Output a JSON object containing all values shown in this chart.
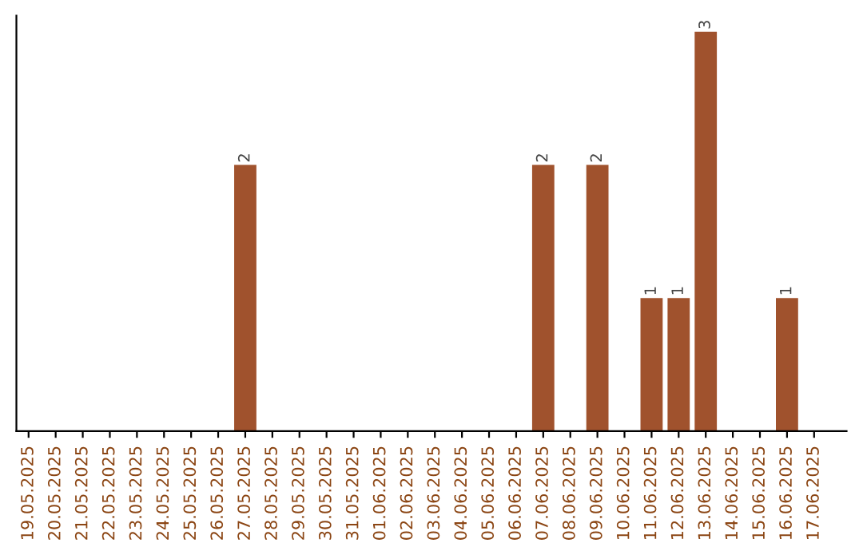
{
  "chart_data": {
    "type": "bar",
    "categories": [
      "19.05.2025",
      "20.05.2025",
      "21.05.2025",
      "22.05.2025",
      "23.05.2025",
      "24.05.2025",
      "25.05.2025",
      "26.05.2025",
      "27.05.2025",
      "28.05.2025",
      "29.05.2025",
      "30.05.2025",
      "31.05.2025",
      "01.06.2025",
      "02.06.2025",
      "03.06.2025",
      "04.06.2025",
      "05.06.2025",
      "06.06.2025",
      "07.06.2025",
      "08.06.2025",
      "09.06.2025",
      "10.06.2025",
      "11.06.2025",
      "12.06.2025",
      "13.06.2025",
      "14.06.2025",
      "15.06.2025",
      "16.06.2025",
      "17.06.2025"
    ],
    "values": [
      0,
      0,
      0,
      0,
      0,
      0,
      0,
      0,
      2,
      0,
      0,
      0,
      0,
      0,
      0,
      0,
      0,
      0,
      0,
      2,
      0,
      2,
      0,
      1,
      1,
      3,
      0,
      0,
      1,
      0
    ],
    "value_labels": [
      null,
      null,
      null,
      null,
      null,
      null,
      null,
      null,
      "2",
      null,
      null,
      null,
      null,
      null,
      null,
      null,
      null,
      null,
      null,
      "2",
      null,
      "2",
      null,
      "1",
      "1",
      "3",
      null,
      null,
      "1",
      null
    ],
    "color": "#a0522d",
    "ylim": [
      0,
      3.12
    ],
    "tick_labels": "x",
    "grid": false,
    "legend": false
  }
}
